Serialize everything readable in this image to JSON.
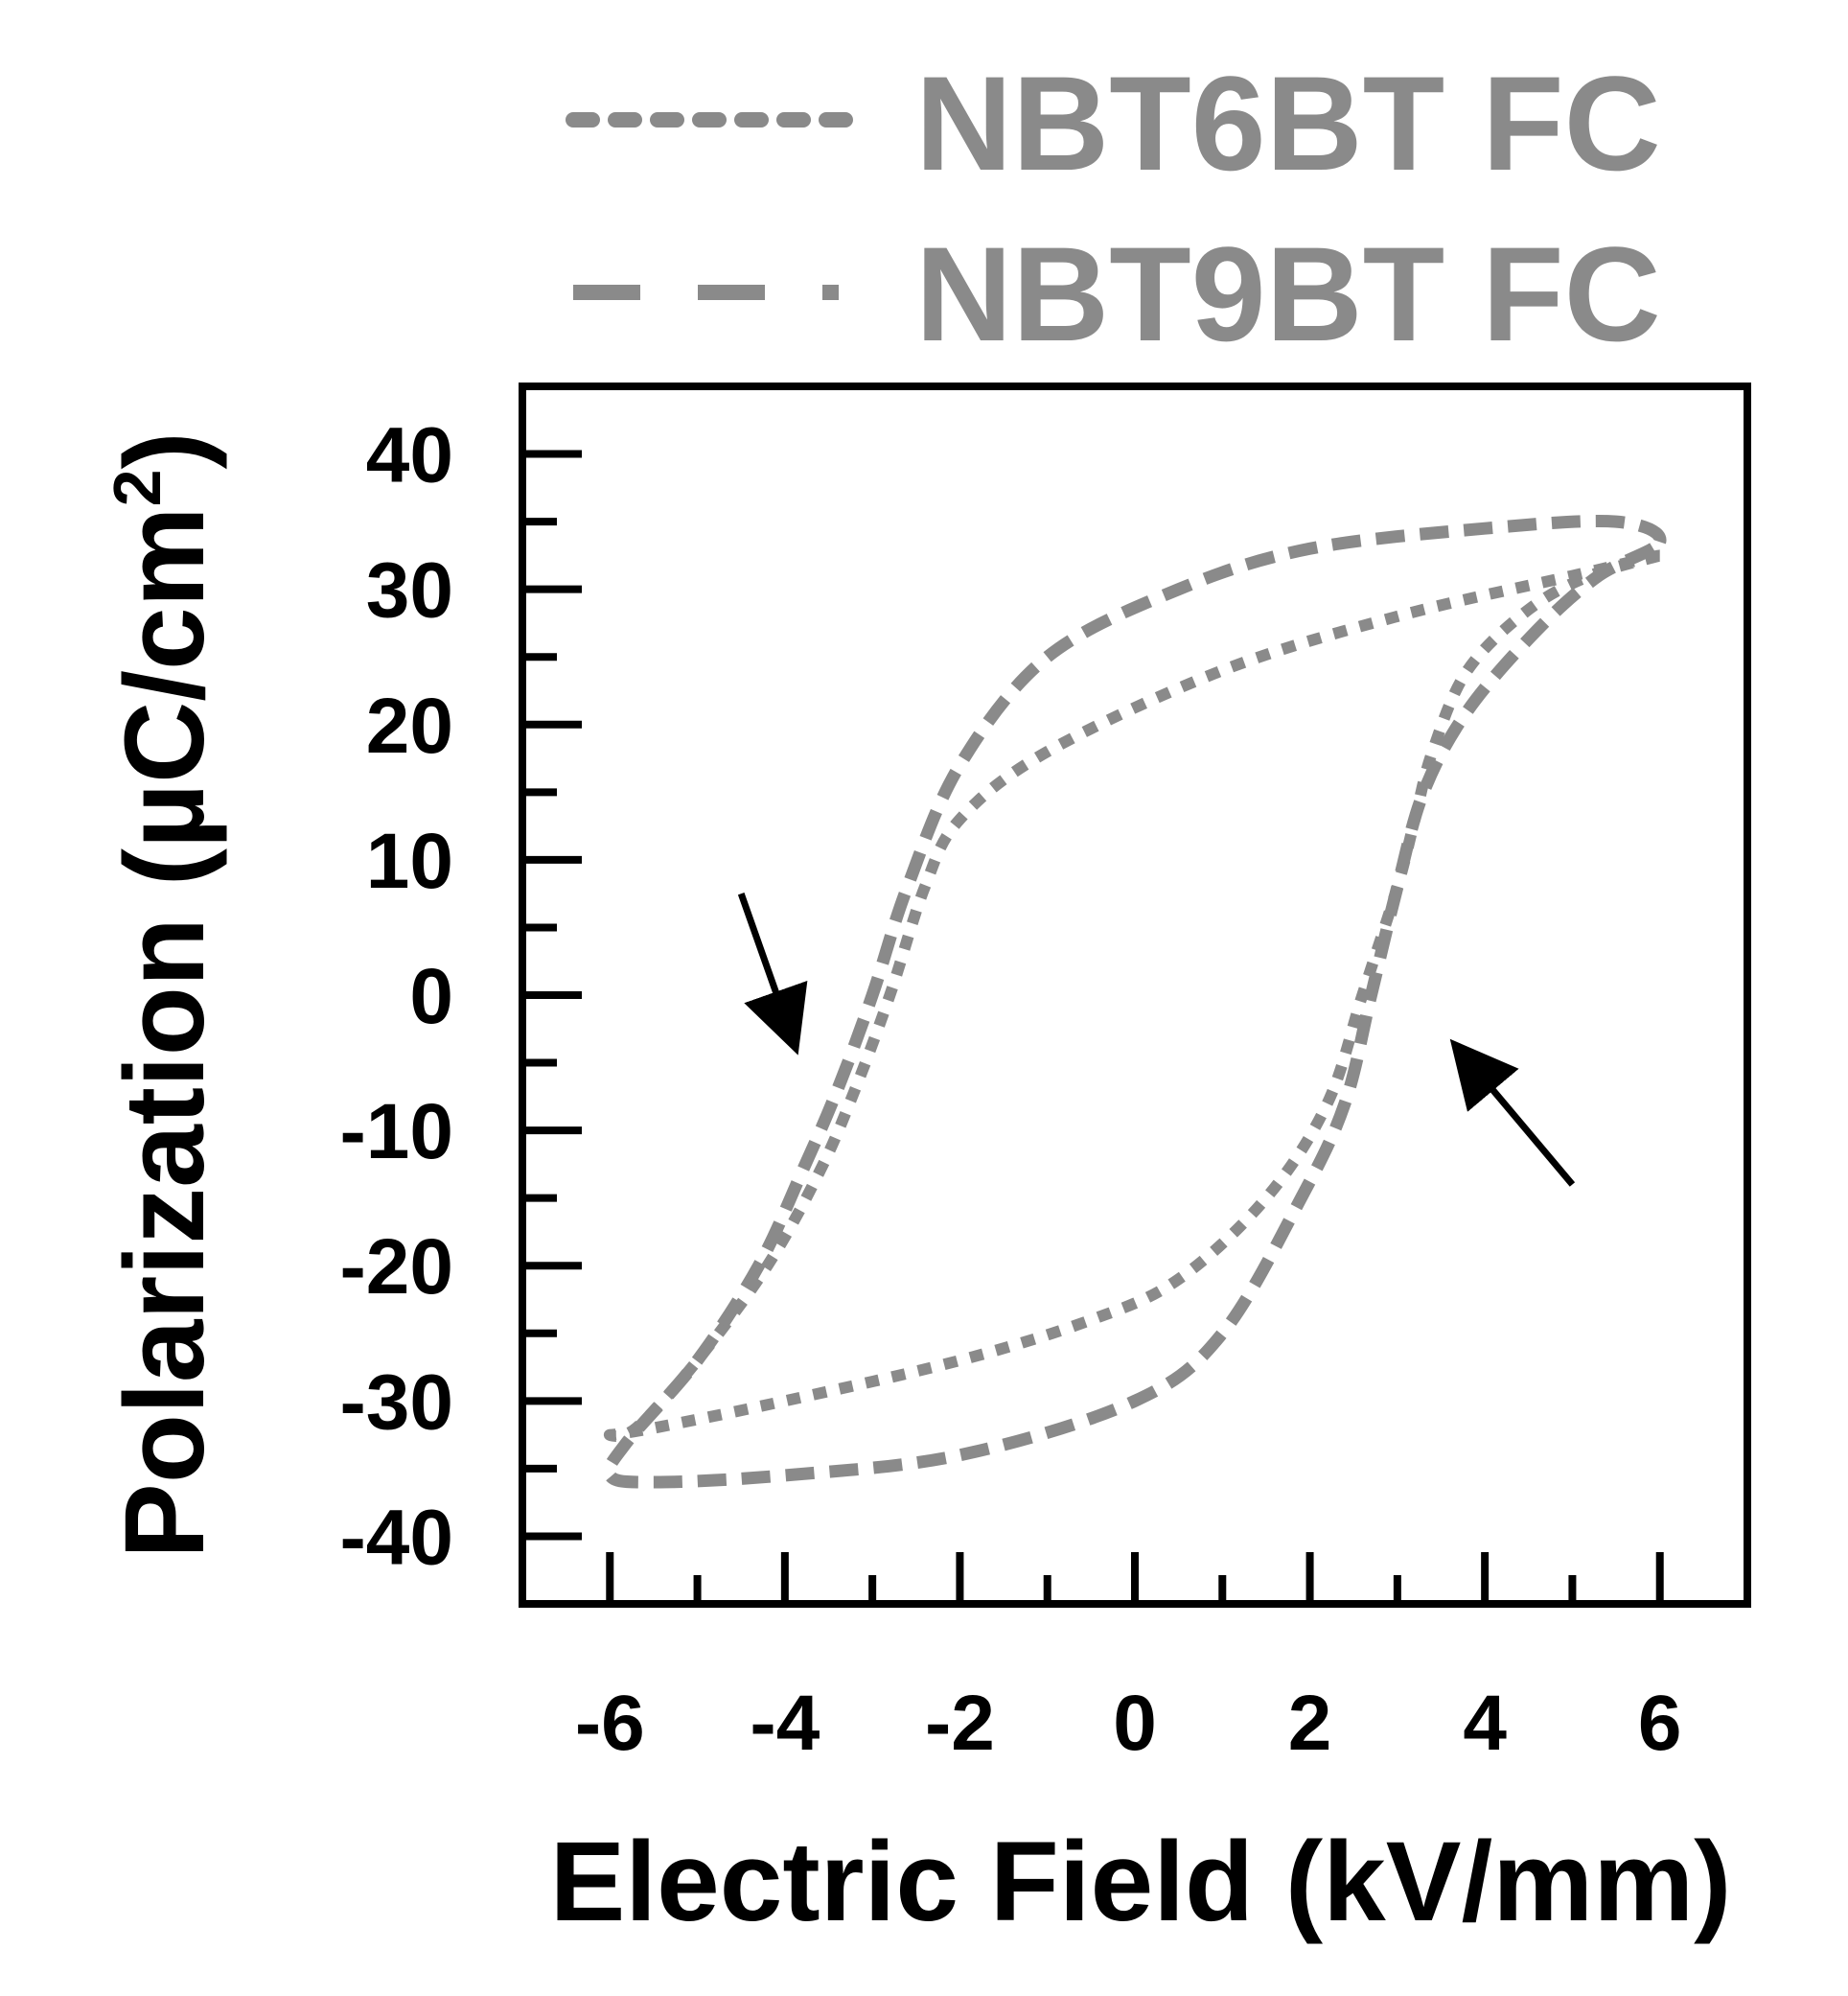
{
  "chart_data": {
    "type": "line",
    "title": "",
    "xlabel": "Electric Field (kV/mm)",
    "ylabel_main": "Polarization  (µC/cm",
    "ylabel_sup": "2",
    "ylabel_close": ")",
    "xlim": [
      -7,
      7
    ],
    "ylim": [
      -45,
      45
    ],
    "xticks": [
      -6,
      -4,
      -2,
      0,
      2,
      4,
      6
    ],
    "xtick_labels": [
      "-6",
      "-4",
      "-2",
      "0",
      "2",
      "4",
      "6"
    ],
    "yticks": [
      -40,
      -30,
      -20,
      -10,
      0,
      10,
      20,
      30,
      40
    ],
    "ytick_labels": [
      "-40",
      "-30",
      "-20",
      "-10",
      "0",
      "10",
      "20",
      "30",
      "40"
    ],
    "grid": false,
    "legend_position": "top, above plot",
    "series_color": "#8a8a8a",
    "annotation_color": "#000000",
    "series": [
      {
        "name": "NBT6BT FC",
        "style": "dotted",
        "x": [
          6.0,
          5.0,
          3.0,
          1.0,
          -1.0,
          -2.0,
          -2.4,
          -2.8,
          -3.2,
          -3.6,
          -4.2,
          -5.0,
          -5.7,
          -6.0,
          -5.5,
          -4.0,
          -2.0,
          -0.5,
          0.5,
          1.5,
          2.2,
          2.6,
          3.0,
          3.2,
          3.4,
          3.8,
          4.5,
          5.2,
          6.0
        ],
        "y": [
          32.5,
          31,
          28,
          24,
          18,
          13,
          8,
          0,
          -7,
          -13,
          -20,
          -27,
          -32,
          -32.5,
          -32,
          -30,
          -27,
          -24,
          -21,
          -15,
          -8,
          0,
          8,
          13,
          18,
          24,
          28.5,
          31,
          32.5
        ]
      },
      {
        "name": "NBT9BT FC",
        "style": "dashed",
        "x": [
          6.0,
          5.5,
          4.0,
          2.0,
          0.5,
          -1.0,
          -2.0,
          -2.6,
          -3.0,
          -3.4,
          -3.8,
          -4.3,
          -5.0,
          -5.8,
          -6.0,
          -5.5,
          -4.0,
          -2.0,
          0.0,
          1.0,
          1.9,
          2.4,
          2.7,
          3.0,
          3.3,
          3.8,
          4.6,
          5.3,
          6.0
        ],
        "y": [
          33.5,
          35,
          34.5,
          33,
          30,
          25,
          17,
          8,
          0,
          -7,
          -13,
          -20,
          -27,
          -33,
          -35.5,
          -36,
          -35.5,
          -34,
          -30,
          -25,
          -15,
          -8,
          0,
          8,
          15,
          21,
          27,
          31,
          33.5
        ]
      }
    ],
    "annotations": [
      {
        "type": "arrow",
        "from": [
          -4.5,
          7.5
        ],
        "to": [
          -3.9,
          -3.5
        ]
      },
      {
        "type": "arrow",
        "from": [
          5.0,
          -14
        ],
        "to": [
          3.7,
          -4
        ]
      }
    ]
  }
}
